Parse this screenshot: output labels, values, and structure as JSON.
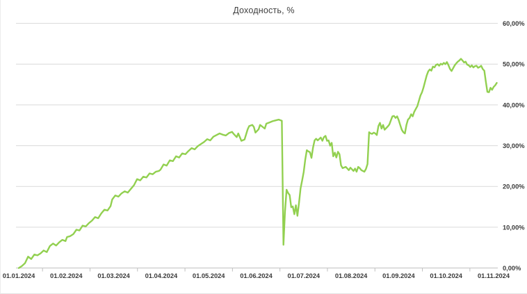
{
  "window": {
    "background": "#ffffff"
  },
  "chart_data": {
    "type": "line",
    "title": "Доходность, %",
    "series_name": "Доходность",
    "year": "2024",
    "legend": "none",
    "grid": true,
    "xlabel": "",
    "ylabel": "",
    "ylim": [
      0,
      60
    ],
    "line_color": "#92d050",
    "grid_color": "#d9d9d9",
    "axis_color": "#bfbfbf",
    "label_color": "#3a3a3a",
    "title_color": "#404040",
    "x_tick_labels": [
      "01.01.2024",
      "01.02.2024",
      "01.03.2024",
      "01.04.2024",
      "01.05.2024",
      "01.06.2024",
      "01.07.2024",
      "01.08.2024",
      "01.09.2024",
      "01.10.2024",
      "01.11.2024"
    ],
    "y_tick_labels": [
      "0,00%",
      "10,00%",
      "20,00%",
      "30,00%",
      "40,00%",
      "50,00%",
      "60,00%"
    ],
    "points": [
      {
        "d": "01.01",
        "v": 0.0
      },
      {
        "d": "03.01",
        "v": 0.5
      },
      {
        "d": "05.01",
        "v": 1.2
      },
      {
        "d": "07.01",
        "v": 2.8
      },
      {
        "d": "09.01",
        "v": 2.2
      },
      {
        "d": "11.01",
        "v": 3.3
      },
      {
        "d": "13.01",
        "v": 3.1
      },
      {
        "d": "15.01",
        "v": 3.6
      },
      {
        "d": "17.01",
        "v": 4.3
      },
      {
        "d": "19.01",
        "v": 3.9
      },
      {
        "d": "21.01",
        "v": 5.4
      },
      {
        "d": "23.01",
        "v": 6.0
      },
      {
        "d": "25.01",
        "v": 5.5
      },
      {
        "d": "27.01",
        "v": 6.3
      },
      {
        "d": "29.01",
        "v": 6.9
      },
      {
        "d": "31.01",
        "v": 6.6
      },
      {
        "d": "01.02",
        "v": 7.6
      },
      {
        "d": "03.02",
        "v": 7.8
      },
      {
        "d": "05.02",
        "v": 8.3
      },
      {
        "d": "07.02",
        "v": 9.4
      },
      {
        "d": "09.02",
        "v": 9.2
      },
      {
        "d": "11.02",
        "v": 10.4
      },
      {
        "d": "13.02",
        "v": 10.2
      },
      {
        "d": "15.02",
        "v": 11.0
      },
      {
        "d": "17.02",
        "v": 11.6
      },
      {
        "d": "19.02",
        "v": 12.5
      },
      {
        "d": "21.02",
        "v": 12.2
      },
      {
        "d": "23.02",
        "v": 13.4
      },
      {
        "d": "25.02",
        "v": 14.3
      },
      {
        "d": "27.02",
        "v": 14.1
      },
      {
        "d": "29.02",
        "v": 15.2
      },
      {
        "d": "01.03",
        "v": 16.8
      },
      {
        "d": "03.03",
        "v": 17.8
      },
      {
        "d": "05.03",
        "v": 17.5
      },
      {
        "d": "07.03",
        "v": 18.3
      },
      {
        "d": "09.03",
        "v": 18.8
      },
      {
        "d": "11.03",
        "v": 18.5
      },
      {
        "d": "13.03",
        "v": 19.4
      },
      {
        "d": "15.03",
        "v": 20.3
      },
      {
        "d": "17.03",
        "v": 21.8
      },
      {
        "d": "19.03",
        "v": 21.5
      },
      {
        "d": "21.03",
        "v": 22.4
      },
      {
        "d": "23.03",
        "v": 22.2
      },
      {
        "d": "25.03",
        "v": 23.2
      },
      {
        "d": "27.03",
        "v": 23.0
      },
      {
        "d": "29.03",
        "v": 23.6
      },
      {
        "d": "31.03",
        "v": 23.8
      },
      {
        "d": "01.04",
        "v": 24.1
      },
      {
        "d": "03.04",
        "v": 25.4
      },
      {
        "d": "05.04",
        "v": 25.1
      },
      {
        "d": "07.04",
        "v": 26.4
      },
      {
        "d": "09.04",
        "v": 26.2
      },
      {
        "d": "11.04",
        "v": 27.4
      },
      {
        "d": "13.04",
        "v": 27.1
      },
      {
        "d": "15.04",
        "v": 28.1
      },
      {
        "d": "17.04",
        "v": 27.9
      },
      {
        "d": "19.04",
        "v": 28.7
      },
      {
        "d": "21.04",
        "v": 29.4
      },
      {
        "d": "23.04",
        "v": 29.1
      },
      {
        "d": "25.04",
        "v": 29.9
      },
      {
        "d": "27.04",
        "v": 30.4
      },
      {
        "d": "29.04",
        "v": 30.9
      },
      {
        "d": "01.05",
        "v": 31.6
      },
      {
        "d": "03.05",
        "v": 31.3
      },
      {
        "d": "05.05",
        "v": 32.2
      },
      {
        "d": "07.05",
        "v": 32.6
      },
      {
        "d": "09.05",
        "v": 33.0
      },
      {
        "d": "11.05",
        "v": 32.7
      },
      {
        "d": "13.05",
        "v": 32.5
      },
      {
        "d": "15.05",
        "v": 33.1
      },
      {
        "d": "17.05",
        "v": 33.4
      },
      {
        "d": "18.05",
        "v": 32.9
      },
      {
        "d": "20.05",
        "v": 32.1
      },
      {
        "d": "21.05",
        "v": 33.0
      },
      {
        "d": "23.05",
        "v": 31.2
      },
      {
        "d": "25.05",
        "v": 31.5
      },
      {
        "d": "27.05",
        "v": 34.0
      },
      {
        "d": "28.05",
        "v": 34.8
      },
      {
        "d": "30.05",
        "v": 35.1
      },
      {
        "d": "31.05",
        "v": 34.6
      },
      {
        "d": "01.06",
        "v": 33.2
      },
      {
        "d": "03.06",
        "v": 34.0
      },
      {
        "d": "04.06",
        "v": 35.1
      },
      {
        "d": "05.06",
        "v": 34.8
      },
      {
        "d": "07.06",
        "v": 34.2
      },
      {
        "d": "08.06",
        "v": 35.4
      },
      {
        "d": "10.06",
        "v": 35.7
      },
      {
        "d": "12.06",
        "v": 36.0
      },
      {
        "d": "14.06",
        "v": 36.2
      },
      {
        "d": "16.06",
        "v": 36.4
      },
      {
        "d": "18.06",
        "v": 36.1
      },
      {
        "d": "19.06",
        "v": 5.7
      },
      {
        "d": "20.06",
        "v": 13.8
      },
      {
        "d": "21.06",
        "v": 19.2
      },
      {
        "d": "22.06",
        "v": 18.4
      },
      {
        "d": "23.06",
        "v": 17.9
      },
      {
        "d": "24.06",
        "v": 14.9
      },
      {
        "d": "25.06",
        "v": 15.1
      },
      {
        "d": "26.06",
        "v": 13.2
      },
      {
        "d": "27.06",
        "v": 15.4
      },
      {
        "d": "28.06",
        "v": 12.8
      },
      {
        "d": "29.06",
        "v": 16.0
      },
      {
        "d": "30.06",
        "v": 19.5
      },
      {
        "d": "01.07",
        "v": 21.5
      },
      {
        "d": "02.07",
        "v": 23.5
      },
      {
        "d": "03.07",
        "v": 26.5
      },
      {
        "d": "04.07",
        "v": 28.9
      },
      {
        "d": "05.07",
        "v": 28.6
      },
      {
        "d": "06.07",
        "v": 28.4
      },
      {
        "d": "07.07",
        "v": 27.0
      },
      {
        "d": "08.07",
        "v": 29.5
      },
      {
        "d": "09.07",
        "v": 31.3
      },
      {
        "d": "10.07",
        "v": 31.7
      },
      {
        "d": "11.07",
        "v": 31.3
      },
      {
        "d": "13.07",
        "v": 32.0
      },
      {
        "d": "14.07",
        "v": 31.2
      },
      {
        "d": "15.07",
        "v": 32.1
      },
      {
        "d": "16.07",
        "v": 32.4
      },
      {
        "d": "17.07",
        "v": 31.2
      },
      {
        "d": "18.07",
        "v": 31.3
      },
      {
        "d": "19.07",
        "v": 30.0
      },
      {
        "d": "20.07",
        "v": 30.7
      },
      {
        "d": "21.07",
        "v": 27.4
      },
      {
        "d": "22.07",
        "v": 28.3
      },
      {
        "d": "23.07",
        "v": 27.1
      },
      {
        "d": "24.07",
        "v": 28.5
      },
      {
        "d": "25.07",
        "v": 27.9
      },
      {
        "d": "26.07",
        "v": 25.2
      },
      {
        "d": "27.07",
        "v": 24.5
      },
      {
        "d": "29.07",
        "v": 24.8
      },
      {
        "d": "31.07",
        "v": 24.0
      },
      {
        "d": "01.08",
        "v": 24.6
      },
      {
        "d": "02.08",
        "v": 24.2
      },
      {
        "d": "03.08",
        "v": 23.8
      },
      {
        "d": "04.08",
        "v": 24.4
      },
      {
        "d": "05.08",
        "v": 23.6
      },
      {
        "d": "06.08",
        "v": 24.8
      },
      {
        "d": "07.08",
        "v": 24.5
      },
      {
        "d": "08.08",
        "v": 24.0
      },
      {
        "d": "10.08",
        "v": 23.6
      },
      {
        "d": "11.08",
        "v": 24.3
      },
      {
        "d": "12.08",
        "v": 25.5
      },
      {
        "d": "13.08",
        "v": 33.3
      },
      {
        "d": "14.08",
        "v": 33.0
      },
      {
        "d": "15.08",
        "v": 32.9
      },
      {
        "d": "16.08",
        "v": 33.2
      },
      {
        "d": "17.08",
        "v": 33.0
      },
      {
        "d": "18.08",
        "v": 32.6
      },
      {
        "d": "19.08",
        "v": 34.8
      },
      {
        "d": "20.08",
        "v": 35.6
      },
      {
        "d": "21.08",
        "v": 34.2
      },
      {
        "d": "22.08",
        "v": 35.1
      },
      {
        "d": "23.08",
        "v": 33.9
      },
      {
        "d": "25.08",
        "v": 34.7
      },
      {
        "d": "26.08",
        "v": 35.2
      },
      {
        "d": "27.08",
        "v": 36.2
      },
      {
        "d": "28.08",
        "v": 37.2
      },
      {
        "d": "29.08",
        "v": 37.3
      },
      {
        "d": "30.08",
        "v": 36.8
      },
      {
        "d": "31.08",
        "v": 37.2
      },
      {
        "d": "01.09",
        "v": 36.3
      },
      {
        "d": "02.09",
        "v": 35.1
      },
      {
        "d": "03.09",
        "v": 33.9
      },
      {
        "d": "04.09",
        "v": 33.3
      },
      {
        "d": "05.09",
        "v": 33.0
      },
      {
        "d": "06.09",
        "v": 35.1
      },
      {
        "d": "07.09",
        "v": 36.4
      },
      {
        "d": "08.09",
        "v": 36.8
      },
      {
        "d": "09.09",
        "v": 37.7
      },
      {
        "d": "10.09",
        "v": 37.2
      },
      {
        "d": "11.09",
        "v": 38.3
      },
      {
        "d": "12.09",
        "v": 39.0
      },
      {
        "d": "13.09",
        "v": 39.7
      },
      {
        "d": "14.09",
        "v": 41.0
      },
      {
        "d": "15.09",
        "v": 42.3
      },
      {
        "d": "16.09",
        "v": 43.1
      },
      {
        "d": "17.09",
        "v": 44.3
      },
      {
        "d": "18.09",
        "v": 45.8
      },
      {
        "d": "19.09",
        "v": 47.2
      },
      {
        "d": "20.09",
        "v": 48.2
      },
      {
        "d": "21.09",
        "v": 48.7
      },
      {
        "d": "22.09",
        "v": 48.4
      },
      {
        "d": "23.09",
        "v": 49.4
      },
      {
        "d": "24.09",
        "v": 49.2
      },
      {
        "d": "25.09",
        "v": 49.8
      },
      {
        "d": "26.09",
        "v": 50.0
      },
      {
        "d": "27.09",
        "v": 49.6
      },
      {
        "d": "28.09",
        "v": 50.1
      },
      {
        "d": "29.09",
        "v": 49.9
      },
      {
        "d": "30.09",
        "v": 50.3
      },
      {
        "d": "01.10",
        "v": 50.0
      },
      {
        "d": "02.10",
        "v": 50.5
      },
      {
        "d": "03.10",
        "v": 49.7
      },
      {
        "d": "04.10",
        "v": 48.8
      },
      {
        "d": "05.10",
        "v": 48.3
      },
      {
        "d": "06.10",
        "v": 49.0
      },
      {
        "d": "07.10",
        "v": 49.7
      },
      {
        "d": "08.10",
        "v": 50.2
      },
      {
        "d": "09.10",
        "v": 50.6
      },
      {
        "d": "10.10",
        "v": 50.9
      },
      {
        "d": "11.10",
        "v": 51.3
      },
      {
        "d": "12.10",
        "v": 50.9
      },
      {
        "d": "13.10",
        "v": 50.4
      },
      {
        "d": "14.10",
        "v": 50.6
      },
      {
        "d": "15.10",
        "v": 49.9
      },
      {
        "d": "16.10",
        "v": 49.7
      },
      {
        "d": "17.10",
        "v": 49.3
      },
      {
        "d": "18.10",
        "v": 49.7
      },
      {
        "d": "19.10",
        "v": 49.2
      },
      {
        "d": "20.10",
        "v": 49.5
      },
      {
        "d": "21.10",
        "v": 49.6
      },
      {
        "d": "22.10",
        "v": 49.1
      },
      {
        "d": "23.10",
        "v": 49.3
      },
      {
        "d": "24.10",
        "v": 49.6
      },
      {
        "d": "25.10",
        "v": 48.8
      },
      {
        "d": "26.10",
        "v": 48.4
      },
      {
        "d": "27.10",
        "v": 45.7
      },
      {
        "d": "28.10",
        "v": 43.2
      },
      {
        "d": "29.10",
        "v": 43.1
      },
      {
        "d": "30.10",
        "v": 44.2
      },
      {
        "d": "31.10",
        "v": 43.7
      },
      {
        "d": "01.11",
        "v": 44.4
      },
      {
        "d": "02.11",
        "v": 44.8
      },
      {
        "d": "03.11",
        "v": 45.4
      }
    ]
  }
}
